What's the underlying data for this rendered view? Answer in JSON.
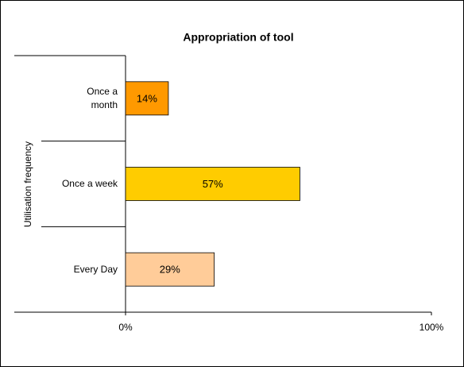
{
  "chart_data": {
    "type": "bar",
    "orientation": "horizontal",
    "title": "Appropriation of tool",
    "y_label": "Utilisation frequency",
    "categories": [
      "Once a\nmonth",
      "Once a week",
      "Every Day"
    ],
    "values": [
      14,
      57,
      29
    ],
    "value_labels": [
      "14%",
      "57%",
      "29%"
    ],
    "colors": [
      "#ff9900",
      "#ffcc00",
      "#ffcc99"
    ],
    "xlim": [
      0,
      100
    ],
    "xticks": [
      {
        "value": 0,
        "label": "0%"
      },
      {
        "value": 100,
        "label": "100%"
      }
    ]
  }
}
